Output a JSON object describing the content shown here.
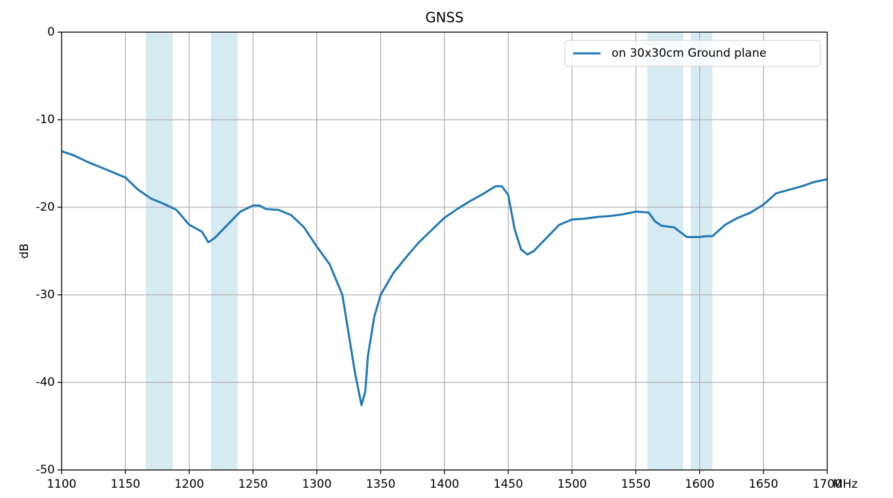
{
  "chart_data": {
    "type": "line",
    "title": "GNSS",
    "xlabel": "MHz",
    "ylabel": "dB",
    "x": [
      1100,
      1110,
      1120,
      1130,
      1140,
      1150,
      1160,
      1170,
      1180,
      1190,
      1200,
      1210,
      1215,
      1220,
      1230,
      1240,
      1250,
      1255,
      1260,
      1270,
      1280,
      1290,
      1300,
      1310,
      1320,
      1325,
      1330,
      1335,
      1338,
      1340,
      1345,
      1350,
      1360,
      1370,
      1380,
      1390,
      1400,
      1410,
      1420,
      1430,
      1440,
      1445,
      1450,
      1455,
      1460,
      1465,
      1470,
      1480,
      1490,
      1500,
      1510,
      1520,
      1530,
      1540,
      1550,
      1560,
      1565,
      1570,
      1580,
      1590,
      1600,
      1605,
      1610,
      1620,
      1630,
      1640,
      1650,
      1660,
      1670,
      1680,
      1690,
      1700
    ],
    "series": [
      {
        "name": "on 30x30cm Ground plane",
        "color": "#1f77b4",
        "values": [
          -13.6,
          -14.1,
          -14.8,
          -15.4,
          -16.0,
          -16.6,
          -18.0,
          -19.0,
          -19.6,
          -20.3,
          -22.0,
          -22.8,
          -24.0,
          -23.5,
          -22.0,
          -20.5,
          -19.8,
          -19.8,
          -20.2,
          -20.3,
          -20.9,
          -22.3,
          -24.5,
          -26.5,
          -30.0,
          -34.5,
          -39.0,
          -42.6,
          -41.0,
          -37.0,
          -32.5,
          -30.0,
          -27.5,
          -25.7,
          -24.0,
          -22.6,
          -21.2,
          -20.2,
          -19.3,
          -18.5,
          -17.6,
          -17.6,
          -18.6,
          -22.5,
          -24.8,
          -25.4,
          -25.0,
          -23.5,
          -22.0,
          -21.4,
          -21.3,
          -21.1,
          -21.0,
          -20.8,
          -20.5,
          -20.6,
          -21.6,
          -22.1,
          -22.3,
          -23.4,
          -23.4,
          -23.3,
          -23.3,
          -22.0,
          -21.2,
          -20.6,
          -19.7,
          -18.4,
          -18.0,
          -17.6,
          -17.1,
          -16.8
        ]
      }
    ],
    "bands": [
      [
        1166,
        1187
      ],
      [
        1217,
        1238
      ],
      [
        1559,
        1587
      ],
      [
        1593,
        1610
      ]
    ],
    "band_color": "#d6eaf2",
    "xlim": [
      1100,
      1700
    ],
    "ylim": [
      -50,
      0
    ],
    "xticks": [
      1100,
      1150,
      1200,
      1250,
      1300,
      1350,
      1400,
      1450,
      1500,
      1550,
      1600,
      1650,
      1700
    ],
    "yticks": [
      0,
      -10,
      -20,
      -30,
      -40,
      -50
    ],
    "grid": true,
    "legend": "upper right"
  }
}
